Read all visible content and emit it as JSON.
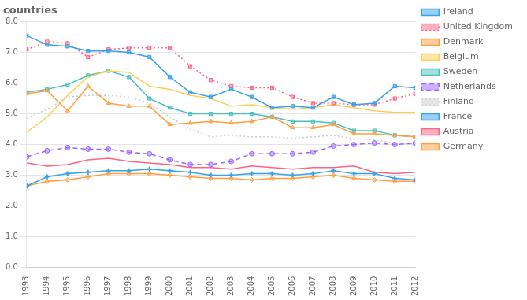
{
  "chart_data": {
    "type": "line",
    "title": "countries",
    "x": [
      1993,
      1994,
      1995,
      1996,
      1997,
      1998,
      1999,
      2000,
      2001,
      2002,
      2003,
      2004,
      2005,
      2006,
      2007,
      2008,
      2009,
      2010,
      2011,
      2012
    ],
    "xlim": [
      1993,
      2012
    ],
    "xticks": [
      1993,
      1994,
      1995,
      1996,
      1997,
      1998,
      1999,
      2000,
      2001,
      2002,
      2003,
      2004,
      2005,
      2006,
      2007,
      2008,
      2009,
      2010,
      2011,
      2012
    ],
    "ylim": [
      0.0,
      8.0
    ],
    "yticks": [
      {
        "value": 0,
        "label": "0.0"
      },
      {
        "value": 1,
        "label": "1.0"
      },
      {
        "value": 2,
        "label": "2.0"
      },
      {
        "value": 3,
        "label": "3.0"
      },
      {
        "value": 4,
        "label": "4.0"
      },
      {
        "value": 5,
        "label": "5.0"
      },
      {
        "value": 6,
        "label": "6.0"
      },
      {
        "value": 7,
        "label": "7.0"
      },
      {
        "value": 8,
        "label": "8.0"
      }
    ],
    "grid": true,
    "legend": "right",
    "series": [
      {
        "name": "Ireland",
        "marker": "square",
        "line_style": "solid",
        "values": [
          7.55,
          7.25,
          7.2,
          7.05,
          7.05,
          7.0,
          6.85,
          6.2,
          5.7,
          5.55,
          5.8,
          5.55,
          5.2,
          5.25,
          5.2,
          5.55,
          5.3,
          5.35,
          5.9,
          5.85
        ]
      },
      {
        "name": "United Kingdom",
        "marker": "square",
        "line_style": "dotted",
        "values": [
          7.1,
          7.35,
          7.3,
          6.85,
          7.1,
          7.15,
          7.15,
          7.15,
          6.55,
          6.1,
          5.9,
          5.85,
          5.85,
          5.55,
          5.35,
          5.35,
          5.3,
          5.3,
          5.5,
          5.65
        ]
      },
      {
        "name": "Denmark",
        "marker": "triangle",
        "line_style": "solid",
        "values": [
          5.65,
          5.75,
          5.1,
          5.9,
          5.35,
          5.25,
          5.25,
          4.65,
          4.7,
          4.75,
          4.7,
          4.75,
          4.9,
          4.55,
          4.55,
          4.65,
          4.35,
          4.35,
          4.3,
          4.25
        ]
      },
      {
        "name": "Belgium",
        "marker": "none",
        "line_style": "solid",
        "values": [
          4.4,
          4.9,
          5.6,
          6.2,
          6.4,
          6.35,
          5.9,
          5.8,
          5.6,
          5.5,
          5.25,
          5.3,
          5.2,
          5.15,
          5.2,
          5.3,
          5.2,
          5.1,
          5.05,
          5.05
        ]
      },
      {
        "name": "Sweden",
        "marker": "square",
        "line_style": "solid",
        "values": [
          5.7,
          5.8,
          5.95,
          6.25,
          6.4,
          6.2,
          5.5,
          5.2,
          5.0,
          5.0,
          5.0,
          5.0,
          4.9,
          4.75,
          4.75,
          4.7,
          4.45,
          4.45,
          4.3,
          4.25
        ]
      },
      {
        "name": "Netherlands",
        "marker": "circle",
        "line_style": "dashed",
        "values": [
          3.6,
          3.8,
          3.9,
          3.85,
          3.85,
          3.75,
          3.7,
          3.5,
          3.35,
          3.35,
          3.45,
          3.7,
          3.7,
          3.7,
          3.75,
          3.95,
          4.0,
          4.05,
          4.0,
          4.05
        ]
      },
      {
        "name": "Finland",
        "marker": "none",
        "line_style": "dotted",
        "values": [
          4.85,
          5.15,
          5.55,
          5.6,
          5.6,
          5.55,
          5.35,
          4.9,
          4.5,
          4.25,
          4.3,
          4.25,
          4.25,
          4.2,
          4.25,
          4.3,
          4.2,
          4.15,
          4.05,
          4.0
        ]
      },
      {
        "name": "France",
        "marker": "plus",
        "line_style": "solid",
        "values": [
          2.65,
          2.95,
          3.05,
          3.1,
          3.15,
          3.15,
          3.2,
          3.15,
          3.1,
          3.0,
          3.0,
          3.05,
          3.05,
          3.0,
          3.05,
          3.15,
          3.05,
          3.05,
          2.9,
          2.85
        ]
      },
      {
        "name": "Austria",
        "marker": "none",
        "line_style": "solid",
        "values": [
          3.4,
          3.3,
          3.35,
          3.5,
          3.55,
          3.45,
          3.4,
          3.35,
          3.25,
          3.25,
          3.2,
          3.3,
          3.25,
          3.2,
          3.25,
          3.25,
          3.3,
          3.1,
          3.05,
          3.1
        ]
      },
      {
        "name": "Germany",
        "marker": "diamond",
        "line_style": "solid",
        "values": [
          2.65,
          2.8,
          2.85,
          2.95,
          3.05,
          3.05,
          3.05,
          3.0,
          2.95,
          2.9,
          2.9,
          2.85,
          2.9,
          2.9,
          2.95,
          3.0,
          2.9,
          2.85,
          2.8,
          2.8
        ]
      }
    ]
  }
}
